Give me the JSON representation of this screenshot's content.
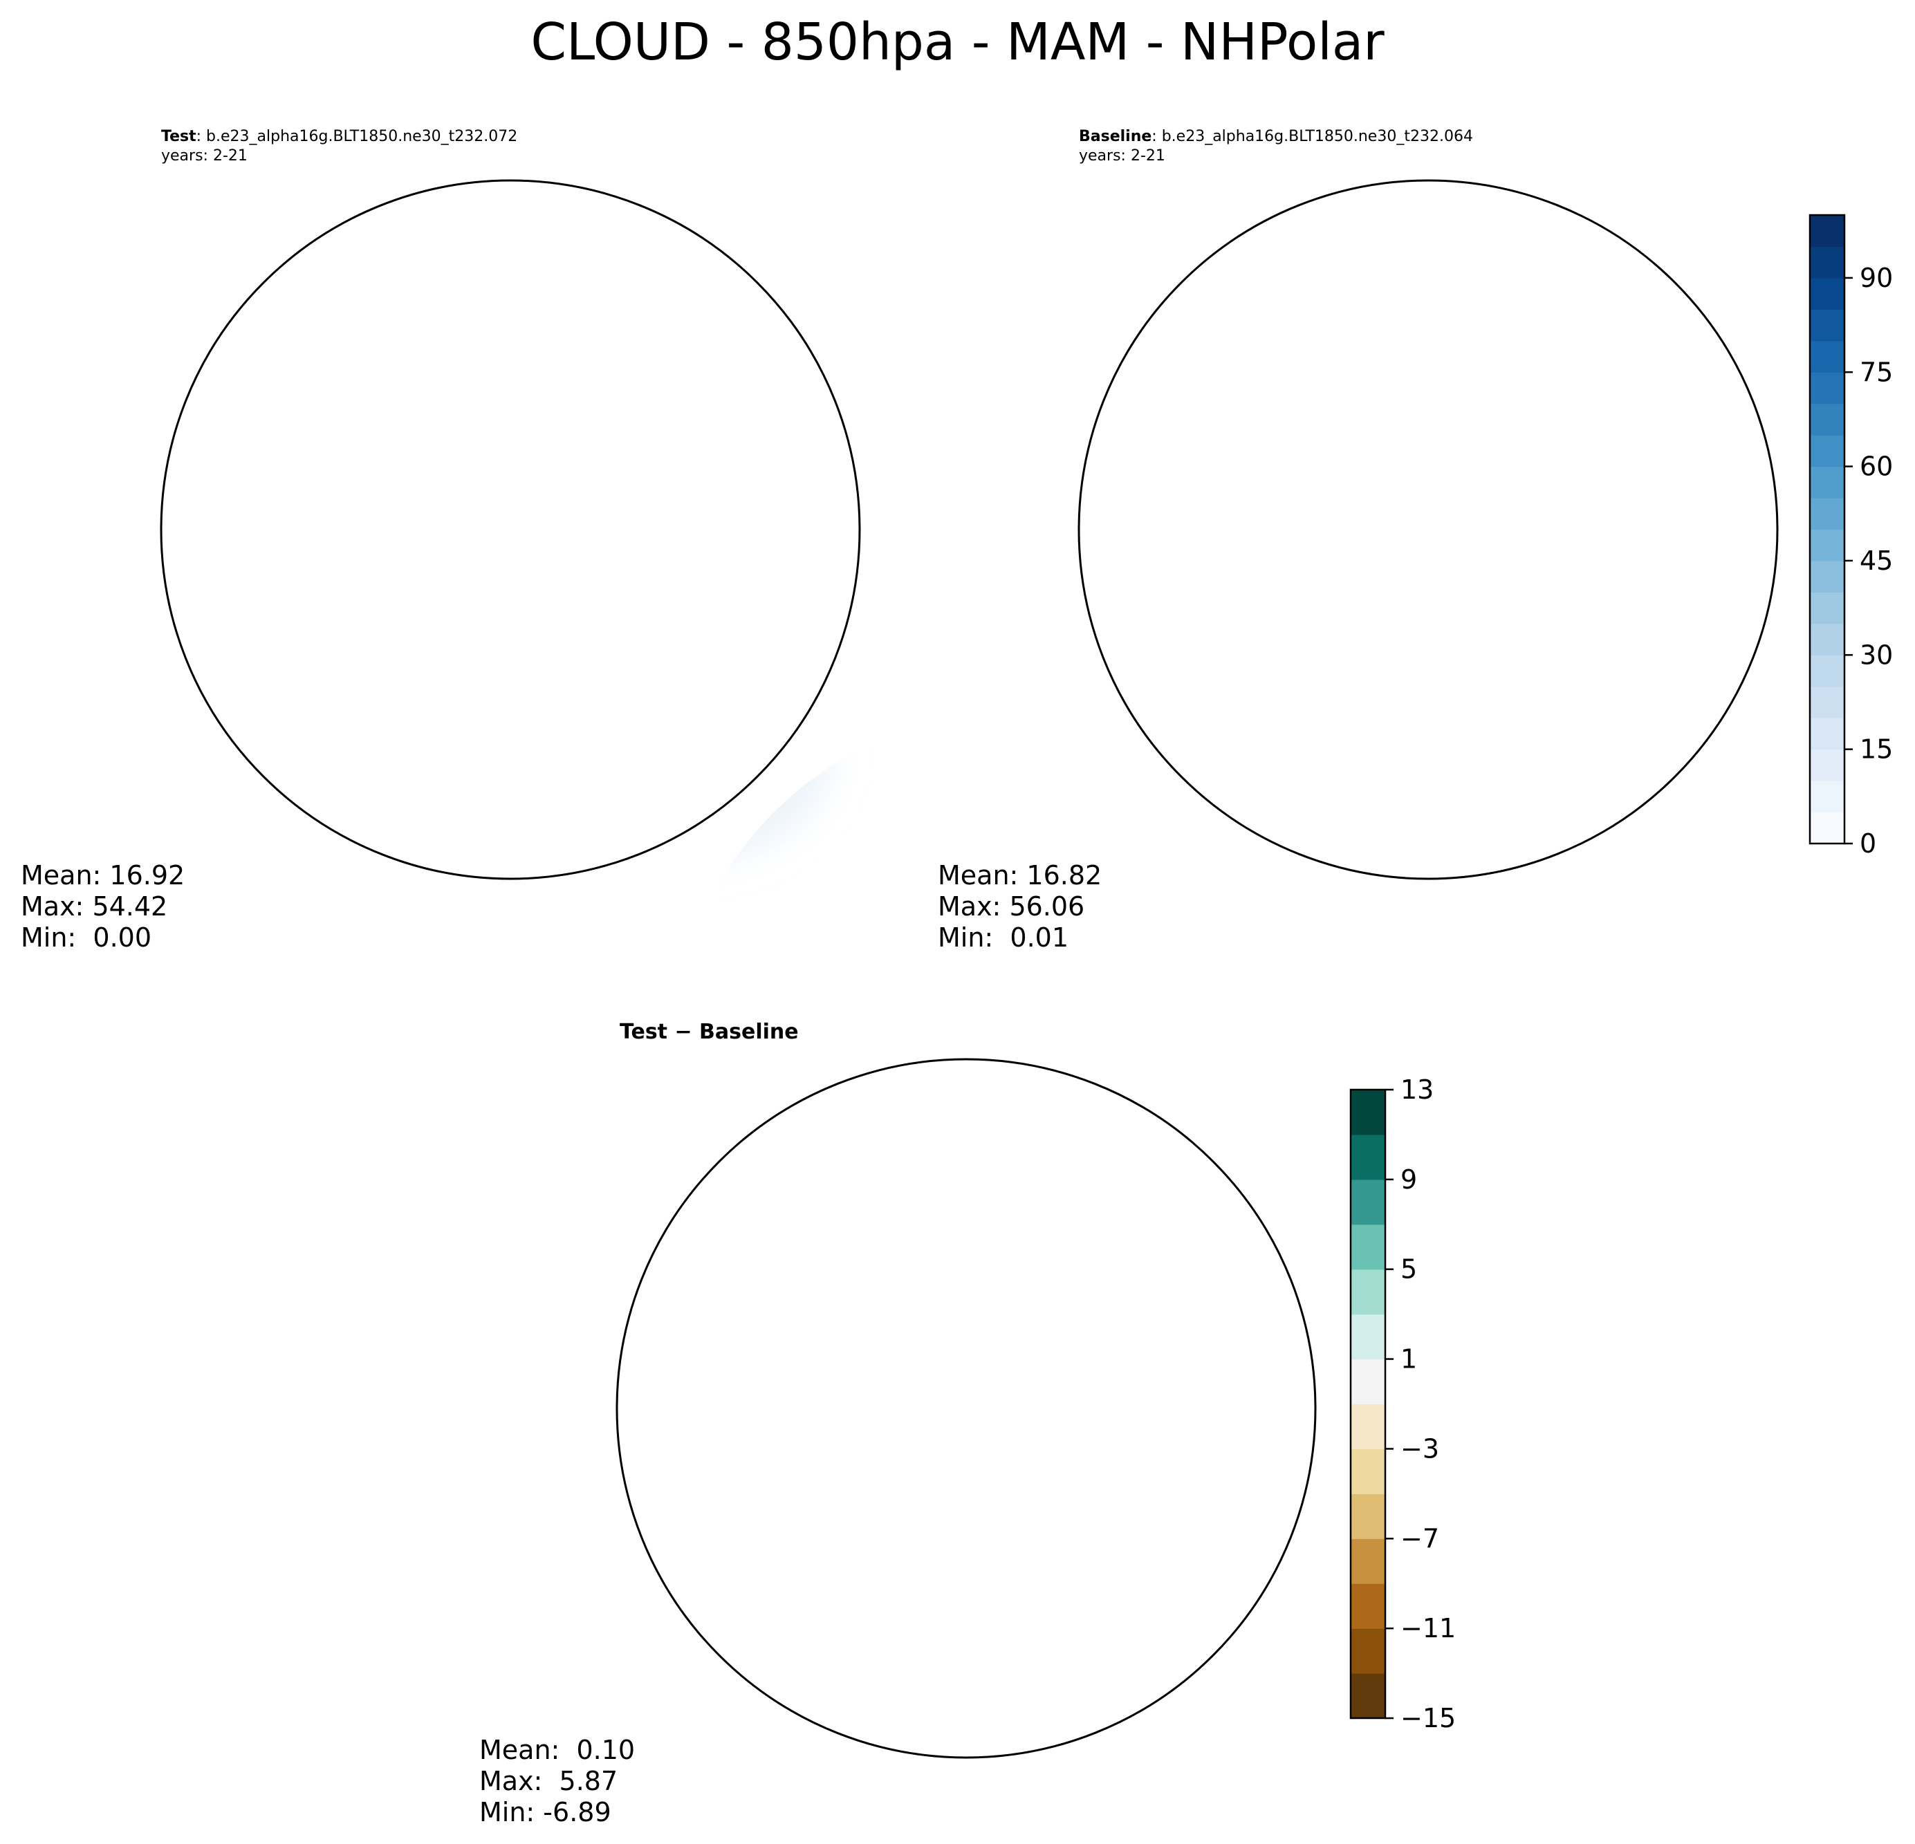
{
  "main_title": "CLOUD - 850hpa - MAM - NHPolar",
  "colors": {
    "blues": [
      "#f7fbff",
      "#e3eef9",
      "#d0e1f2",
      "#b7d4ea",
      "#94c4df",
      "#6aaed6",
      "#4a98c9",
      "#2e7ebc",
      "#1764ab",
      "#08488e",
      "#08306b"
    ],
    "diff_neg": [
      "#623b0c",
      "#8b5009",
      "#ad6819",
      "#c7913f",
      "#dfbe74",
      "#eeda9f",
      "#f5e8c8"
    ],
    "diff_zero": "#f3f4f3",
    "diff_pos": [
      "#d4eeeb",
      "#a3ddd1",
      "#6ac2b5",
      "#35978f",
      "#0a6e65",
      "#02473e"
    ],
    "land": "#000000",
    "greenland": "#ffffff"
  },
  "chart_data": [
    {
      "type": "heatmap",
      "panel": "test",
      "label": "Test",
      "case": ": b.e23_alpha16g.BLT1850.ne30_t232.072",
      "years": "years: 2-21",
      "stats": {
        "mean": "Mean: 16.92",
        "max": "Max: 54.42",
        "min": "Min:  0.00"
      }
    },
    {
      "type": "heatmap",
      "panel": "baseline",
      "label": "Baseline",
      "case": ": b.e23_alpha16g.BLT1850.ne30_t232.064",
      "years": "years: 2-21",
      "stats": {
        "mean": "Mean: 16.82",
        "max": "Max: 56.06",
        "min": "Min:  0.01"
      },
      "colorbar": {
        "range": [
          0,
          100
        ],
        "ticks": [
          0,
          15,
          30,
          45,
          60,
          75,
          90
        ],
        "levels": 20
      }
    },
    {
      "type": "heatmap",
      "panel": "difference",
      "label": "Test − Baseline",
      "stats": {
        "mean": "Mean:  0.10",
        "max": "Max:  5.87",
        "min": "Min: -6.89"
      },
      "colorbar": {
        "range": [
          -15,
          13
        ],
        "ticks": [
          13,
          9,
          5,
          1,
          -3,
          -7,
          -11,
          -15
        ],
        "levels": 14
      }
    }
  ]
}
